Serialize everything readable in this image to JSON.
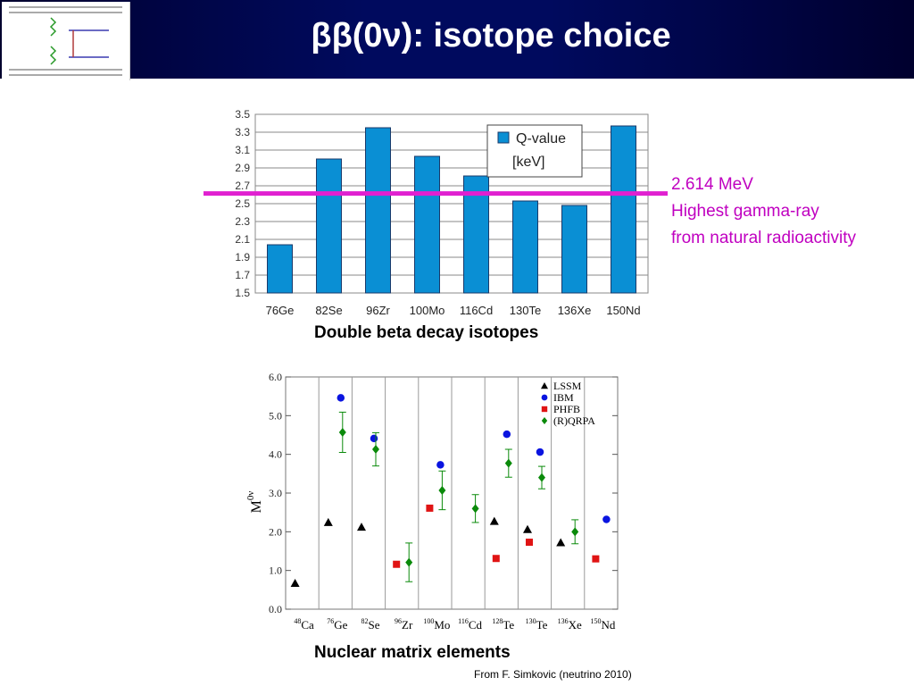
{
  "slide": {
    "title": "ββ(0ν): isotope choice",
    "caption_top": "Double beta decay isotopes",
    "caption_bottom": "Nuclear matrix elements",
    "source": "From F. Simkovic (neutrino 2010)",
    "note_lines": [
      "2.614 MeV",
      "Highest gamma-ray",
      "from natural radioactivity"
    ],
    "colors": {
      "header": "#000a5e",
      "highlight": "#e020d0",
      "note_text": "#c000c0"
    }
  },
  "chart_data": [
    {
      "type": "bar",
      "categories": [
        "76Ge",
        "82Se",
        "96Zr",
        "100Mo",
        "116Cd",
        "130Te",
        "136Xe",
        "150Nd"
      ],
      "values": [
        2.04,
        3.0,
        3.35,
        3.03,
        2.81,
        2.53,
        2.48,
        3.37
      ],
      "ylim": [
        1.5,
        3.5
      ],
      "yticks": [
        "1.5",
        "1.7",
        "1.9",
        "2.1",
        "2.3",
        "2.5",
        "2.7",
        "2.9",
        "3.1",
        "3.3",
        "3.5"
      ],
      "legend": [
        "Q-value",
        "[keV]"
      ],
      "legend_placement": "top-right",
      "grid": true,
      "bar_color": "#0a8fd4",
      "reference_line": {
        "value": 2.614,
        "color": "#e020d0"
      }
    },
    {
      "type": "scatter",
      "ylabel": "M",
      "ylabel_sup": "0ν",
      "ylim": [
        0.0,
        6.0
      ],
      "yticks": [
        "0.0",
        "1.0",
        "2.0",
        "3.0",
        "4.0",
        "5.0",
        "6.0"
      ],
      "categories": [
        {
          "mass": "48",
          "el": "Ca"
        },
        {
          "mass": "76",
          "el": "Ge"
        },
        {
          "mass": "82",
          "el": "Se"
        },
        {
          "mass": "96",
          "el": "Zr"
        },
        {
          "mass": "100",
          "el": "Mo"
        },
        {
          "mass": "116",
          "el": "Cd"
        },
        {
          "mass": "128",
          "el": "Te"
        },
        {
          "mass": "130",
          "el": "Te"
        },
        {
          "mass": "136",
          "el": "Xe"
        },
        {
          "mass": "150",
          "el": "Nd"
        }
      ],
      "legend_placement": "top-right",
      "series": [
        {
          "name": "LSSM",
          "marker": "triangle",
          "color": "#000000",
          "values": [
            0.67,
            2.24,
            2.12,
            null,
            null,
            null,
            2.27,
            2.06,
            1.72,
            null
          ]
        },
        {
          "name": "IBM",
          "marker": "circle",
          "color": "#0a14e0",
          "values": [
            null,
            5.46,
            4.41,
            null,
            3.73,
            null,
            4.52,
            4.06,
            null,
            2.32
          ]
        },
        {
          "name": "PHFB",
          "marker": "square",
          "color": "#e01414",
          "values": [
            null,
            null,
            null,
            1.16,
            2.61,
            null,
            1.31,
            1.73,
            null,
            1.3
          ]
        },
        {
          "name": "(R)QRPA",
          "marker": "diamond",
          "color": "#0a8a0a",
          "values": [
            null,
            4.57,
            4.13,
            1.21,
            3.07,
            2.6,
            3.77,
            3.4,
            2.0,
            null
          ],
          "errors": [
            null,
            0.52,
            0.43,
            0.5,
            0.5,
            0.36,
            0.36,
            0.29,
            0.31,
            null
          ]
        }
      ]
    }
  ]
}
